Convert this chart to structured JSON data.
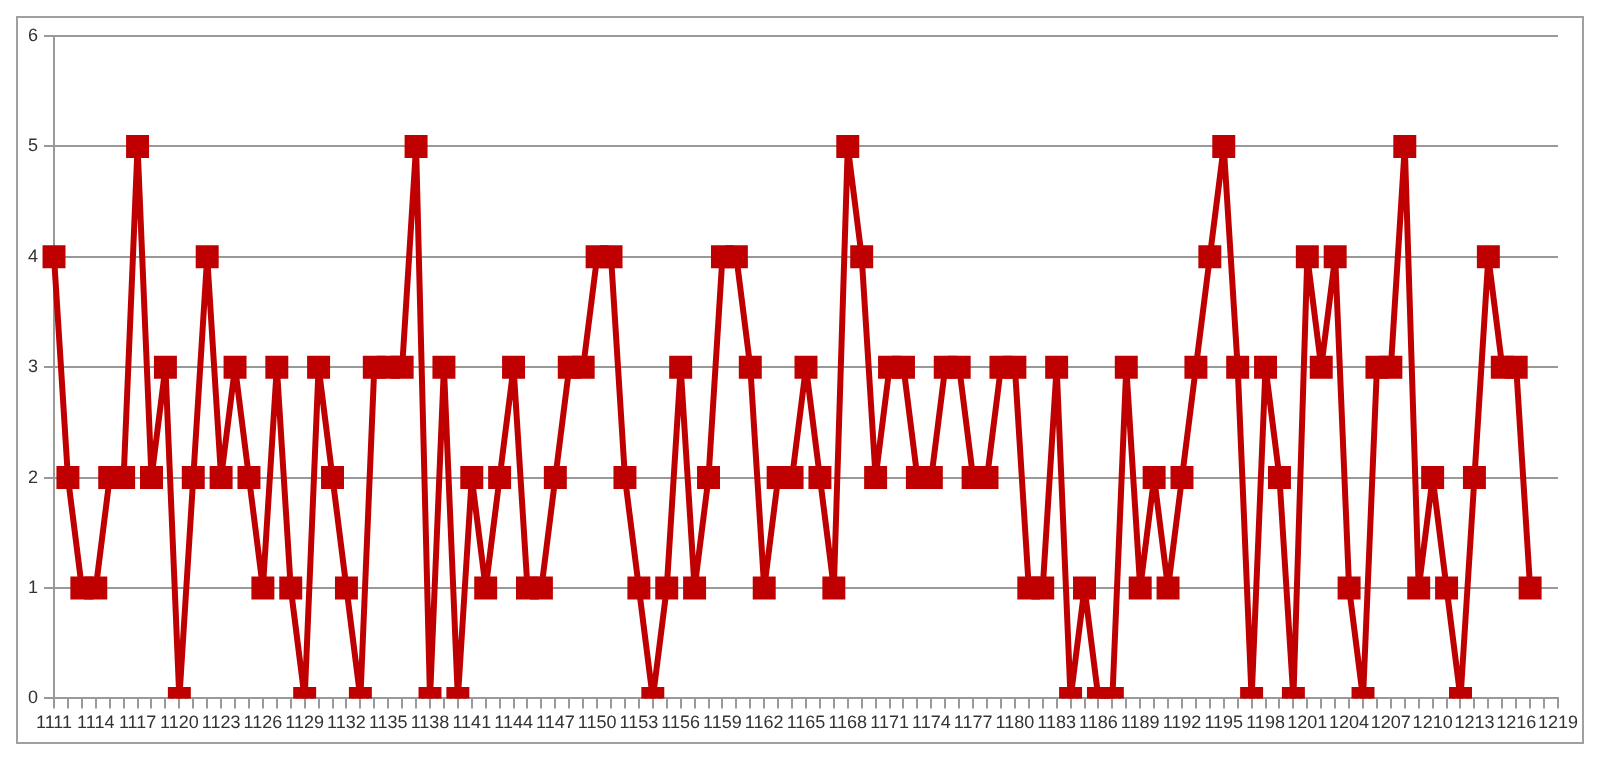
{
  "chart_data": {
    "type": "line",
    "categories": [
      "1111",
      null,
      null,
      "1114",
      null,
      null,
      "1117",
      null,
      null,
      "1120",
      null,
      null,
      "1123",
      null,
      null,
      "1126",
      null,
      null,
      "1129",
      null,
      null,
      "1132",
      null,
      null,
      "1135",
      null,
      null,
      "1138",
      null,
      null,
      "1141",
      null,
      null,
      "1144",
      null,
      null,
      "1147",
      null,
      null,
      "1150",
      null,
      null,
      "1153",
      null,
      null,
      "1156",
      null,
      null,
      "1159",
      null,
      null,
      "1162",
      null,
      null,
      "1165",
      null,
      null,
      "1168",
      null,
      null,
      "1171",
      null,
      null,
      "1174",
      null,
      null,
      "1177",
      null,
      null,
      "1180",
      null,
      null,
      "1183",
      null,
      null,
      "1186",
      null,
      null,
      "1189",
      null,
      null,
      "1192",
      null,
      null,
      "1195",
      null,
      null,
      "1198",
      null,
      null,
      "1201",
      null,
      null,
      "1204",
      null,
      null,
      "1207",
      null,
      null,
      "1210",
      null,
      null,
      "1213",
      null,
      null,
      "1216",
      null,
      null,
      "1219"
    ],
    "series": [
      {
        "color": "#c00000",
        "values": [
          4,
          2,
          1,
          1,
          2,
          2,
          5,
          2,
          3,
          0,
          2,
          4,
          2,
          3,
          2,
          1,
          3,
          1,
          0,
          3,
          2,
          1,
          0,
          3,
          3,
          3,
          5,
          0,
          3,
          0,
          2,
          1,
          2,
          3,
          1,
          1,
          2,
          3,
          3,
          4,
          4,
          2,
          1,
          0,
          1,
          3,
          1,
          2,
          4,
          4,
          3,
          1,
          2,
          2,
          3,
          2,
          1,
          5,
          4,
          2,
          3,
          3,
          2,
          2,
          3,
          3,
          2,
          2,
          3,
          3,
          1,
          1,
          3,
          0,
          1,
          0,
          0,
          3,
          1,
          2,
          1,
          2,
          3,
          4,
          5,
          3,
          0,
          3,
          2,
          0,
          4,
          3,
          4,
          1,
          0,
          3,
          3,
          5,
          1,
          2,
          1,
          0,
          2,
          4,
          3,
          3,
          1,
          null,
          null
        ]
      }
    ],
    "ylim": [
      0,
      6
    ],
    "yticks": [
      0,
      1,
      2,
      3,
      4,
      5,
      6
    ],
    "grid": "y",
    "marker": "square",
    "line_style": "solid"
  }
}
